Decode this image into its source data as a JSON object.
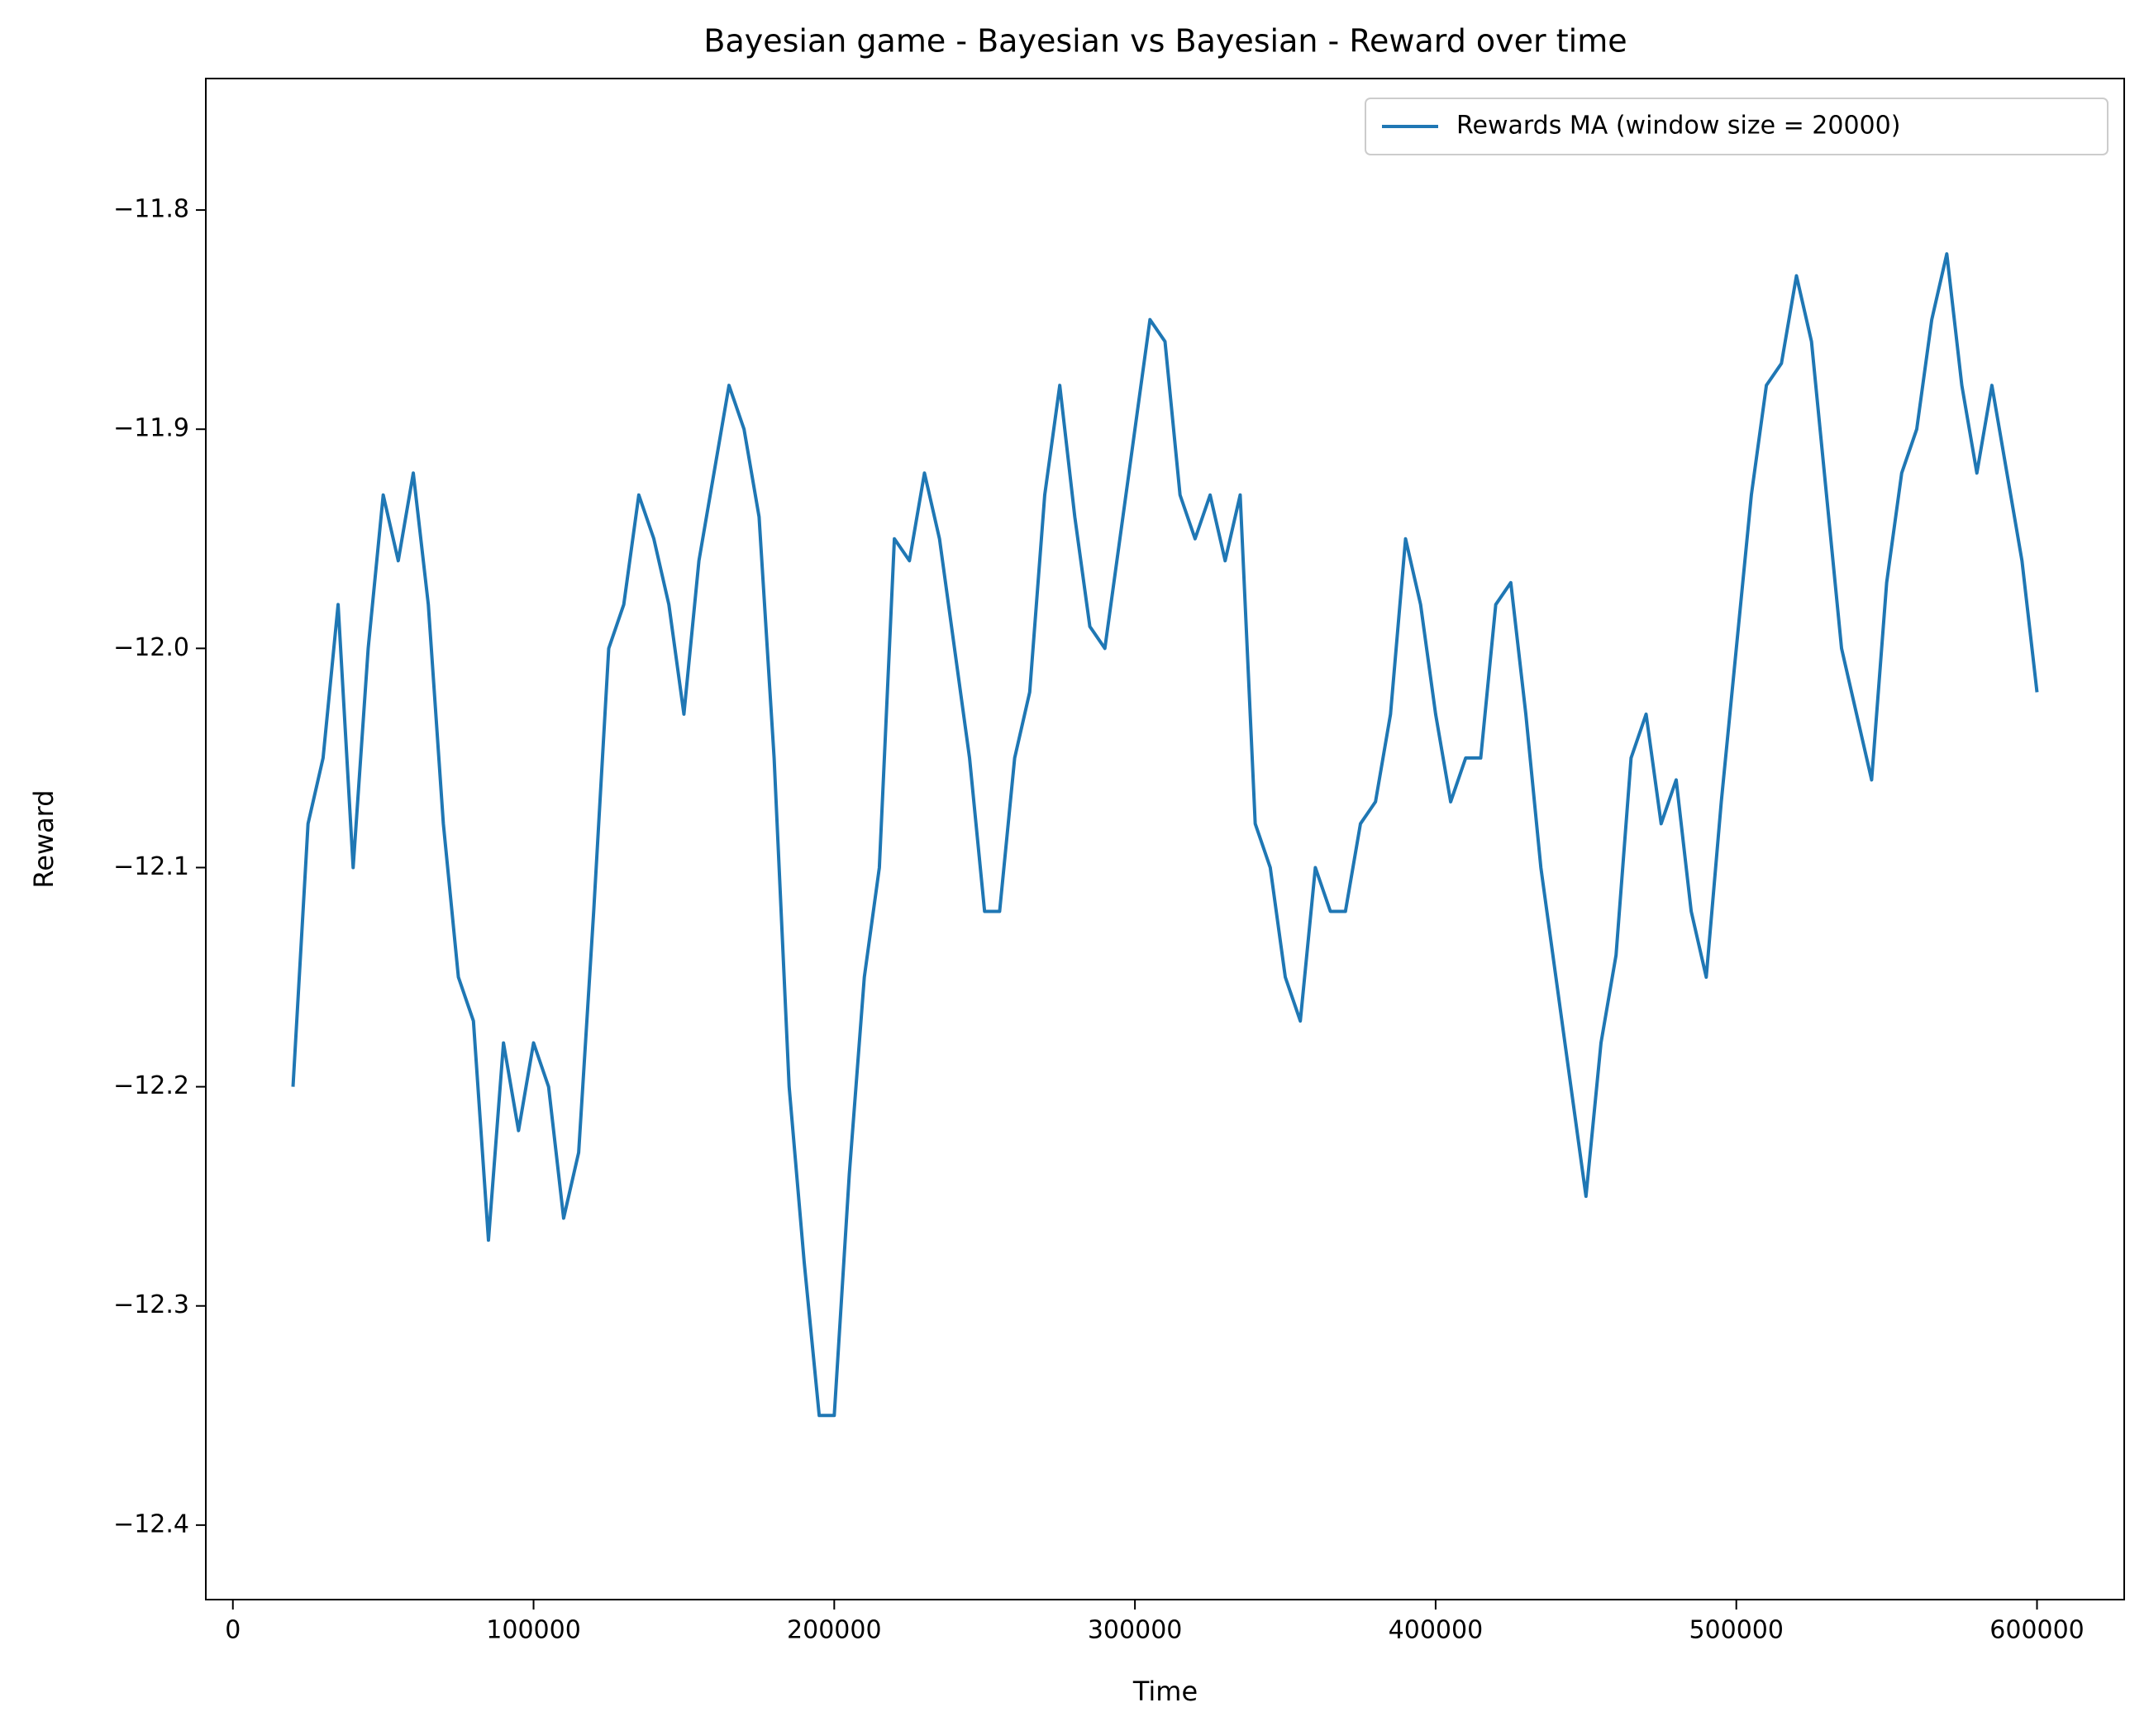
{
  "chart_data": {
    "type": "line",
    "title": "Bayesian game - Bayesian vs Bayesian - Reward over time",
    "x_label": "Time",
    "y_label": "Reward",
    "xlim": [
      -9000,
      629000
    ],
    "ylim": [
      -12.434,
      -11.74
    ],
    "xticks": [
      0,
      100000,
      200000,
      300000,
      400000,
      500000,
      600000
    ],
    "yticks": [
      {
        "value": -12.4,
        "label": "−12.4"
      },
      {
        "value": -12.3,
        "label": "−12.3"
      },
      {
        "value": -12.2,
        "label": "−12.2"
      },
      {
        "value": -12.1,
        "label": "−12.1"
      },
      {
        "value": -12.0,
        "label": "−12.0"
      },
      {
        "value": -11.9,
        "label": "−11.9"
      },
      {
        "value": -11.8,
        "label": "−11.8"
      }
    ],
    "grid": false,
    "legend_position": "upper-right",
    "x": [
      20000,
      25000,
      30000,
      35000,
      40000,
      45000,
      50000,
      55000,
      60000,
      65000,
      70000,
      75000,
      80000,
      85000,
      90000,
      95000,
      100000,
      105000,
      110000,
      115000,
      120000,
      125000,
      130000,
      135000,
      140000,
      145000,
      150000,
      155000,
      160000,
      165000,
      170000,
      175000,
      180000,
      185000,
      190000,
      195000,
      200000,
      205000,
      210000,
      215000,
      220000,
      225000,
      230000,
      235000,
      240000,
      245000,
      250000,
      255000,
      260000,
      265000,
      270000,
      275000,
      280000,
      285000,
      290000,
      295000,
      300000,
      305000,
      310000,
      315000,
      320000,
      325000,
      330000,
      335000,
      340000,
      345000,
      350000,
      355000,
      360000,
      365000,
      370000,
      375000,
      380000,
      385000,
      390000,
      395000,
      400000,
      405000,
      410000,
      415000,
      420000,
      425000,
      430000,
      435000,
      440000,
      445000,
      450000,
      455000,
      460000,
      465000,
      470000,
      475000,
      480000,
      485000,
      490000,
      495000,
      500000,
      505000,
      510000,
      515000,
      520000,
      525000,
      530000,
      535000,
      540000,
      545000,
      550000,
      555000,
      560000,
      565000,
      570000,
      575000,
      580000,
      585000,
      590000,
      595000,
      600000
    ],
    "series": [
      {
        "name": "Rewards MA (window size = 20000)",
        "color": "#1f77b4",
        "values": [
          -12.2,
          -12.08,
          -12.05,
          -11.98,
          -12.1,
          -12.0,
          -11.93,
          -11.96,
          -11.92,
          -11.98,
          -12.08,
          -12.15,
          -12.17,
          -12.27,
          -12.18,
          -12.22,
          -12.18,
          -12.2,
          -12.26,
          -12.23,
          -12.12,
          -12.0,
          -11.98,
          -11.93,
          -11.95,
          -11.98,
          -12.03,
          -11.96,
          -11.92,
          -11.88,
          -11.9,
          -11.94,
          -12.05,
          -12.2,
          -12.28,
          -12.35,
          -12.35,
          -12.24,
          -12.15,
          -12.1,
          -11.95,
          -11.96,
          -11.92,
          -11.95,
          -12.0,
          -12.05,
          -12.12,
          -12.12,
          -12.05,
          -12.02,
          -11.93,
          -11.88,
          -11.94,
          -11.99,
          -12.0,
          -11.95,
          -11.9,
          -11.85,
          -11.86,
          -11.93,
          -11.95,
          -11.93,
          -11.96,
          -11.93,
          -12.08,
          -12.1,
          -12.15,
          -12.17,
          -12.1,
          -12.12,
          -12.12,
          -12.08,
          -12.07,
          -12.03,
          -11.95,
          -11.98,
          -12.03,
          -12.07,
          -12.05,
          -12.05,
          -11.98,
          -11.97,
          -12.03,
          -12.1,
          -12.15,
          -12.2,
          -12.25,
          -12.18,
          -12.14,
          -12.05,
          -12.03,
          -12.08,
          -12.06,
          -12.12,
          -12.15,
          -12.07,
          -12.0,
          -11.93,
          -11.88,
          -11.87,
          -11.83,
          -11.86,
          -11.93,
          -12.0,
          -12.03,
          -12.06,
          -11.97,
          -11.92,
          -11.9,
          -11.85,
          -11.82,
          -11.88,
          -11.92,
          -11.88,
          -11.92,
          -11.96,
          -12.02
        ]
      }
    ]
  }
}
